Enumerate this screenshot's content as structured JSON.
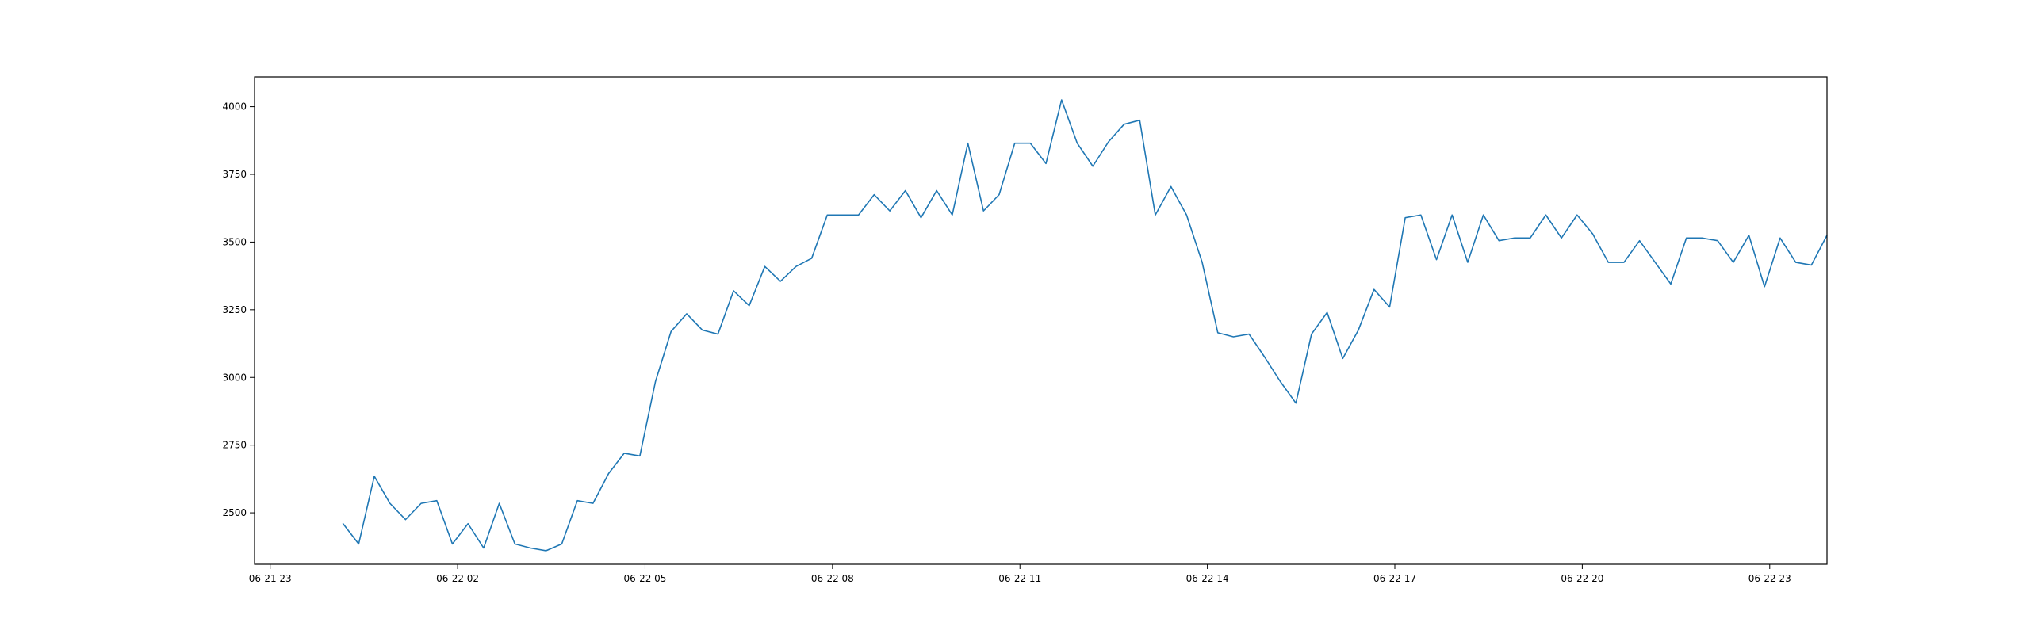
{
  "chart_data": {
    "type": "line",
    "title": "",
    "xlabel": "",
    "ylabel": "",
    "grid": false,
    "legend": "none",
    "x_unit": "datetime",
    "xlim": [
      "2024-06-21 22:45",
      "2024-06-22 23:55"
    ],
    "ylim": [
      2310,
      4110
    ],
    "x_ticks": [
      {
        "value": "2024-06-21 23:00",
        "label": "06-21 23"
      },
      {
        "value": "2024-06-22 02:00",
        "label": "06-22 02"
      },
      {
        "value": "2024-06-22 05:00",
        "label": "06-22 05"
      },
      {
        "value": "2024-06-22 08:00",
        "label": "06-22 08"
      },
      {
        "value": "2024-06-22 11:00",
        "label": "06-22 11"
      },
      {
        "value": "2024-06-22 14:00",
        "label": "06-22 14"
      },
      {
        "value": "2024-06-22 17:00",
        "label": "06-22 17"
      },
      {
        "value": "2024-06-22 20:00",
        "label": "06-22 20"
      },
      {
        "value": "2024-06-22 23:00",
        "label": "06-22 23"
      }
    ],
    "y_ticks": [
      {
        "value": 2500,
        "label": "2500"
      },
      {
        "value": 2750,
        "label": "2750"
      },
      {
        "value": 3000,
        "label": "3000"
      },
      {
        "value": 3250,
        "label": "3250"
      },
      {
        "value": 3500,
        "label": "3500"
      },
      {
        "value": 3750,
        "label": "3750"
      },
      {
        "value": 4000,
        "label": "4000"
      }
    ],
    "series": [
      {
        "color": "#1f77b4",
        "points": [
          [
            "2024-06-22 00:10",
            2460
          ],
          [
            "2024-06-22 00:25",
            2385
          ],
          [
            "2024-06-22 00:40",
            2635
          ],
          [
            "2024-06-22 00:55",
            2535
          ],
          [
            "2024-06-22 01:10",
            2475
          ],
          [
            "2024-06-22 01:25",
            2535
          ],
          [
            "2024-06-22 01:40",
            2545
          ],
          [
            "2024-06-22 01:55",
            2385
          ],
          [
            "2024-06-22 02:10",
            2460
          ],
          [
            "2024-06-22 02:25",
            2370
          ],
          [
            "2024-06-22 02:40",
            2535
          ],
          [
            "2024-06-22 02:55",
            2385
          ],
          [
            "2024-06-22 03:10",
            2370
          ],
          [
            "2024-06-22 03:25",
            2360
          ],
          [
            "2024-06-22 03:40",
            2385
          ],
          [
            "2024-06-22 03:55",
            2545
          ],
          [
            "2024-06-22 04:10",
            2535
          ],
          [
            "2024-06-22 04:25",
            2645
          ],
          [
            "2024-06-22 04:40",
            2720
          ],
          [
            "2024-06-22 04:55",
            2710
          ],
          [
            "2024-06-22 05:10",
            2985
          ],
          [
            "2024-06-22 05:25",
            3170
          ],
          [
            "2024-06-22 05:40",
            3235
          ],
          [
            "2024-06-22 05:55",
            3175
          ],
          [
            "2024-06-22 06:10",
            3160
          ],
          [
            "2024-06-22 06:25",
            3320
          ],
          [
            "2024-06-22 06:40",
            3265
          ],
          [
            "2024-06-22 06:55",
            3410
          ],
          [
            "2024-06-22 07:10",
            3355
          ],
          [
            "2024-06-22 07:25",
            3410
          ],
          [
            "2024-06-22 07:40",
            3440
          ],
          [
            "2024-06-22 07:55",
            3600
          ],
          [
            "2024-06-22 08:10",
            3600
          ],
          [
            "2024-06-22 08:25",
            3600
          ],
          [
            "2024-06-22 08:40",
            3675
          ],
          [
            "2024-06-22 08:55",
            3615
          ],
          [
            "2024-06-22 09:10",
            3690
          ],
          [
            "2024-06-22 09:25",
            3590
          ],
          [
            "2024-06-22 09:40",
            3690
          ],
          [
            "2024-06-22 09:55",
            3600
          ],
          [
            "2024-06-22 10:10",
            3865
          ],
          [
            "2024-06-22 10:25",
            3615
          ],
          [
            "2024-06-22 10:40",
            3675
          ],
          [
            "2024-06-22 10:55",
            3865
          ],
          [
            "2024-06-22 11:10",
            3865
          ],
          [
            "2024-06-22 11:25",
            3790
          ],
          [
            "2024-06-22 11:40",
            4025
          ],
          [
            "2024-06-22 11:55",
            3865
          ],
          [
            "2024-06-22 12:10",
            3780
          ],
          [
            "2024-06-22 12:25",
            3870
          ],
          [
            "2024-06-22 12:40",
            3935
          ],
          [
            "2024-06-22 12:55",
            3950
          ],
          [
            "2024-06-22 13:10",
            3600
          ],
          [
            "2024-06-22 13:25",
            3705
          ],
          [
            "2024-06-22 13:40",
            3600
          ],
          [
            "2024-06-22 13:55",
            3425
          ],
          [
            "2024-06-22 14:10",
            3165
          ],
          [
            "2024-06-22 14:25",
            3150
          ],
          [
            "2024-06-22 14:40",
            3160
          ],
          [
            "2024-06-22 14:55",
            3075
          ],
          [
            "2024-06-22 15:10",
            2985
          ],
          [
            "2024-06-22 15:25",
            2905
          ],
          [
            "2024-06-22 15:40",
            3160
          ],
          [
            "2024-06-22 15:55",
            3240
          ],
          [
            "2024-06-22 16:10",
            3070
          ],
          [
            "2024-06-22 16:25",
            3175
          ],
          [
            "2024-06-22 16:40",
            3325
          ],
          [
            "2024-06-22 16:55",
            3260
          ],
          [
            "2024-06-22 17:10",
            3590
          ],
          [
            "2024-06-22 17:25",
            3600
          ],
          [
            "2024-06-22 17:40",
            3435
          ],
          [
            "2024-06-22 17:55",
            3600
          ],
          [
            "2024-06-22 18:10",
            3425
          ],
          [
            "2024-06-22 18:25",
            3600
          ],
          [
            "2024-06-22 18:40",
            3505
          ],
          [
            "2024-06-22 18:55",
            3515
          ],
          [
            "2024-06-22 19:10",
            3515
          ],
          [
            "2024-06-22 19:25",
            3600
          ],
          [
            "2024-06-22 19:40",
            3515
          ],
          [
            "2024-06-22 19:55",
            3600
          ],
          [
            "2024-06-22 20:10",
            3530
          ],
          [
            "2024-06-22 20:25",
            3425
          ],
          [
            "2024-06-22 20:40",
            3425
          ],
          [
            "2024-06-22 20:55",
            3505
          ],
          [
            "2024-06-22 21:10",
            3425
          ],
          [
            "2024-06-22 21:25",
            3345
          ],
          [
            "2024-06-22 21:40",
            3515
          ],
          [
            "2024-06-22 21:55",
            3515
          ],
          [
            "2024-06-22 22:10",
            3505
          ],
          [
            "2024-06-22 22:25",
            3425
          ],
          [
            "2024-06-22 22:40",
            3525
          ],
          [
            "2024-06-22 22:55",
            3335
          ],
          [
            "2024-06-22 23:10",
            3515
          ],
          [
            "2024-06-22 23:25",
            3425
          ],
          [
            "2024-06-22 23:40",
            3415
          ],
          [
            "2024-06-22 23:55",
            3525
          ]
        ]
      }
    ]
  }
}
